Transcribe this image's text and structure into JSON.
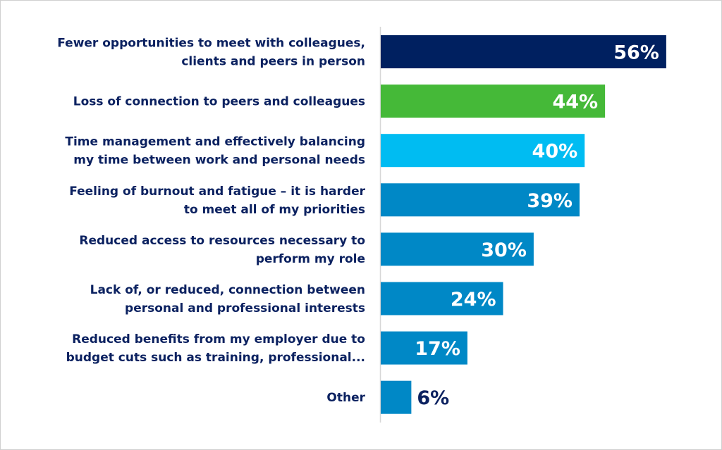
{
  "chart_data": {
    "type": "bar",
    "orientation": "horizontal",
    "categories": [
      [
        "Fewer opportunities to meet with colleagues,",
        "clients and peers in person"
      ],
      [
        "Loss of connection to peers and colleagues"
      ],
      [
        "Time management and effectively balancing",
        "my time between work and personal needs"
      ],
      [
        "Feeling of burnout and fatigue – it is harder",
        "to meet all of my priorities"
      ],
      [
        "Reduced access to resources necessary to",
        "perform my role"
      ],
      [
        "Lack of, or reduced, connection between",
        "personal and professional interests"
      ],
      [
        "Reduced benefits from my employer due to",
        "budget cuts such as training, professional..."
      ],
      [
        "Other"
      ]
    ],
    "values": [
      56,
      44,
      40,
      39,
      30,
      24,
      17,
      6
    ],
    "data_labels": [
      "56%",
      "44%",
      "40%",
      "39%",
      "30%",
      "24%",
      "17%",
      "6%"
    ],
    "bar_colors": [
      "#002060",
      "#45b938",
      "#00bcf2",
      "#0088c6",
      "#0088c6",
      "#0088c6",
      "#0088c6",
      "#0088c6"
    ],
    "label_color_inside": "#ffffff",
    "label_color_outside": "#0b2160",
    "xlim": [
      0,
      100
    ],
    "grid": false,
    "legend": "none"
  }
}
